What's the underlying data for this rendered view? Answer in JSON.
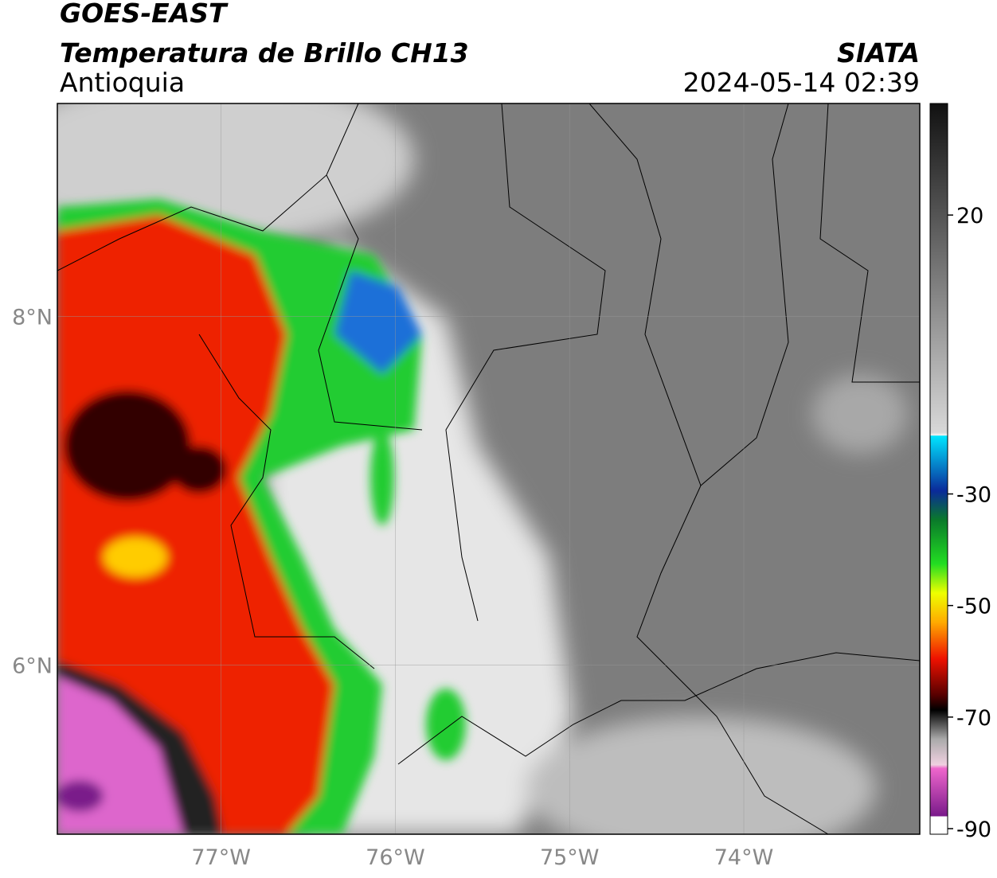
{
  "header": {
    "title": "GOES-EAST",
    "subtitle": "Temperatura de Brillo CH13",
    "region": "Antioquia",
    "agency": "SIATA",
    "datetime": "2024-05-14 02:39"
  },
  "map": {
    "lon_range": [
      -77.94,
      -72.99
    ],
    "lat_range": [
      5.03,
      9.22
    ],
    "lat_ticks": [
      {
        "value": 8,
        "label": "8°N"
      },
      {
        "value": 6,
        "label": "6°N"
      }
    ],
    "lon_ticks": [
      {
        "value": -77,
        "label": "77°W"
      },
      {
        "value": -76,
        "label": "76°W"
      },
      {
        "value": -75,
        "label": "75°W"
      },
      {
        "value": -74,
        "label": "74°W"
      }
    ],
    "grid": true
  },
  "colorbar": {
    "range": [
      -91,
      40
    ],
    "ticks": [
      20,
      -30,
      -50,
      -70,
      -90
    ]
  }
}
